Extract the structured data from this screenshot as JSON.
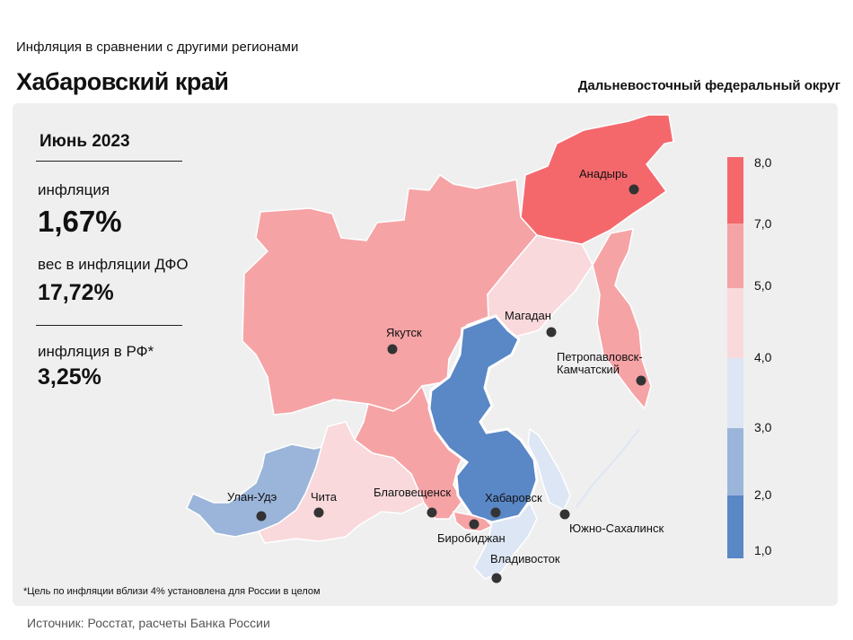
{
  "header": {
    "subtitle": "Инфляция в сравнении с другими регионами",
    "region": "Хабаровский край",
    "district": "Дальневосточный федеральный округ"
  },
  "stats": {
    "period": "Июнь 2023",
    "inflation_label": "инфляция",
    "inflation_value": "1,67%",
    "weight_label": "вес в инфляции ДФО",
    "weight_value": "17,72%",
    "rf_label": "инфляция в РФ*",
    "rf_value": "3,25%"
  },
  "footnote": "*Цель по инфляции вблизи 4% установлена для России в целом",
  "source": "Источник: Росстат, расчеты Банка России",
  "legend": {
    "ticks": [
      "8,0",
      "7,0",
      "5,0",
      "4,0",
      "3,0",
      "2,0",
      "1,0"
    ],
    "colors": [
      "#f4686c",
      "#f6a3a6",
      "#f9d9dc",
      "#dde6f4",
      "#9bb5da",
      "#5a87c6"
    ]
  },
  "colors": {
    "highlight": "#5a87c6",
    "chukotka": "#f4686c",
    "yakutia": "#f6a3a6"
  },
  "cities": [
    {
      "name": "Анадырь"
    },
    {
      "name": "Магадан"
    },
    {
      "name": "Якутск"
    },
    {
      "name": "Петропавловск-"
    },
    {
      "name": "Камчатский"
    },
    {
      "name": "Улан-Удэ"
    },
    {
      "name": "Чита"
    },
    {
      "name": "Благовещенск"
    },
    {
      "name": "Хабаровск"
    },
    {
      "name": "Южно-Сахалинск"
    },
    {
      "name": "Биробиджан"
    },
    {
      "name": "Владивосток"
    }
  ]
}
